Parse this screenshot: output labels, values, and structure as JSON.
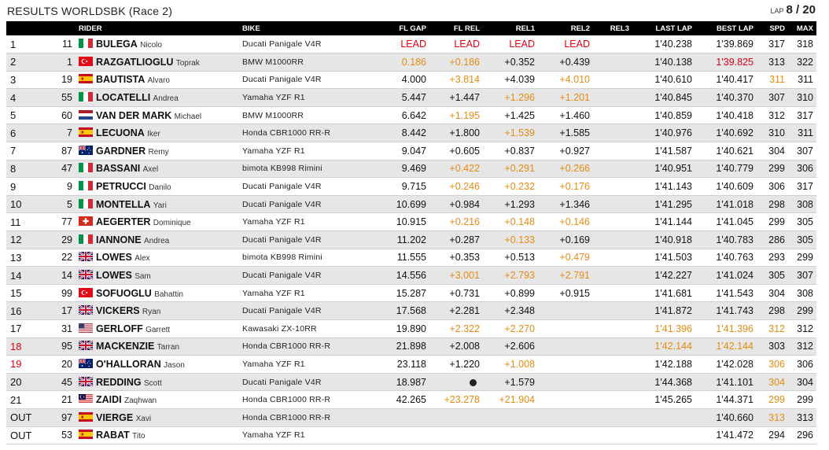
{
  "header": {
    "title": "RESULTS WORLDSBK (Race 2)",
    "lap_label": "LAP",
    "lap_value": "8 / 20"
  },
  "columns": [
    "",
    "",
    "RIDER",
    "BIKE",
    "FL GAP",
    "FL REL",
    "REL1",
    "REL2",
    "REL3",
    "LAST LAP",
    "BEST LAP",
    "SPD",
    "MAX"
  ],
  "colors": {
    "red": "#e3000f",
    "orange": "#e78b12",
    "header_bg": "#000000",
    "row_alt": "#e6e6e6"
  },
  "rows": [
    {
      "pos": "1",
      "num": "11",
      "flag": "italy",
      "last": "BULEGA",
      "first": "Nicolo",
      "bike": "Ducati Panigale V4R",
      "flgap": "LEAD",
      "flrel": "LEAD",
      "rel1": "LEAD",
      "rel2": "LEAD",
      "rel3": "",
      "lastlap": "1'40.238",
      "bestlap": "1'39.869",
      "spd": "317",
      "max": "318",
      "c": {
        "flgap": "r",
        "flrel": "r",
        "rel1": "r",
        "rel2": "r"
      }
    },
    {
      "pos": "2",
      "num": "1",
      "flag": "turkey",
      "last": "RAZGATLIOGLU",
      "first": "Toprak",
      "bike": "BMW M1000RR",
      "flgap": "0.186",
      "flrel": "+0.186",
      "rel1": "+0.352",
      "rel2": "+0.439",
      "rel3": "",
      "lastlap": "1'40.138",
      "bestlap": "1'39.825",
      "spd": "313",
      "max": "322",
      "c": {
        "flgap": "o",
        "flrel": "o",
        "bestlap": "r"
      }
    },
    {
      "pos": "3",
      "num": "19",
      "flag": "spain",
      "last": "BAUTISTA",
      "first": "Alvaro",
      "bike": "Ducati Panigale V4R",
      "flgap": "4.000",
      "flrel": "+3.814",
      "rel1": "+4.039",
      "rel2": "+4.010",
      "rel3": "",
      "lastlap": "1'40.610",
      "bestlap": "1'40.417",
      "spd": "311",
      "max": "311",
      "c": {
        "flrel": "o",
        "rel2": "o",
        "spd": "o"
      }
    },
    {
      "pos": "4",
      "num": "55",
      "flag": "italy",
      "last": "LOCATELLI",
      "first": "Andrea",
      "bike": "Yamaha YZF R1",
      "flgap": "5.447",
      "flrel": "+1.447",
      "rel1": "+1.296",
      "rel2": "+1.201",
      "rel3": "",
      "lastlap": "1'40.845",
      "bestlap": "1'40.370",
      "spd": "307",
      "max": "310",
      "c": {
        "rel1": "o",
        "rel2": "o"
      }
    },
    {
      "pos": "5",
      "num": "60",
      "flag": "netherlands",
      "last": "VAN DER MARK",
      "first": "Michael",
      "bike": "BMW M1000RR",
      "flgap": "6.642",
      "flrel": "+1.195",
      "rel1": "+1.425",
      "rel2": "+1.460",
      "rel3": "",
      "lastlap": "1'40.859",
      "bestlap": "1'40.418",
      "spd": "312",
      "max": "317",
      "c": {
        "flrel": "o"
      }
    },
    {
      "pos": "6",
      "num": "7",
      "flag": "spain",
      "last": "LECUONA",
      "first": "Iker",
      "bike": "Honda CBR1000 RR-R",
      "flgap": "8.442",
      "flrel": "+1.800",
      "rel1": "+1.539",
      "rel2": "+1.585",
      "rel3": "",
      "lastlap": "1'40.976",
      "bestlap": "1'40.692",
      "spd": "310",
      "max": "311",
      "c": {
        "rel1": "o"
      }
    },
    {
      "pos": "7",
      "num": "87",
      "flag": "australia",
      "last": "GARDNER",
      "first": "Remy",
      "bike": "Yamaha YZF R1",
      "flgap": "9.047",
      "flrel": "+0.605",
      "rel1": "+0.837",
      "rel2": "+0.927",
      "rel3": "",
      "lastlap": "1'41.587",
      "bestlap": "1'40.621",
      "spd": "304",
      "max": "307",
      "c": {}
    },
    {
      "pos": "8",
      "num": "47",
      "flag": "italy",
      "last": "BASSANI",
      "first": "Axel",
      "bike": "bimota KB998 Rimini",
      "flgap": "9.469",
      "flrel": "+0.422",
      "rel1": "+0.291",
      "rel2": "+0.266",
      "rel3": "",
      "lastlap": "1'40.951",
      "bestlap": "1'40.779",
      "spd": "299",
      "max": "306",
      "c": {
        "flrel": "o",
        "rel1": "o",
        "rel2": "o"
      }
    },
    {
      "pos": "9",
      "num": "9",
      "flag": "italy",
      "last": "PETRUCCI",
      "first": "Danilo",
      "bike": "Ducati Panigale V4R",
      "flgap": "9.715",
      "flrel": "+0.246",
      "rel1": "+0.232",
      "rel2": "+0.176",
      "rel3": "",
      "lastlap": "1'41.143",
      "bestlap": "1'40.609",
      "spd": "306",
      "max": "317",
      "c": {
        "flrel": "o",
        "rel1": "o",
        "rel2": "o"
      }
    },
    {
      "pos": "10",
      "num": "5",
      "flag": "italy",
      "last": "MONTELLA",
      "first": "Yari",
      "bike": "Ducati Panigale V4R",
      "flgap": "10.699",
      "flrel": "+0.984",
      "rel1": "+1.293",
      "rel2": "+1.346",
      "rel3": "",
      "lastlap": "1'41.295",
      "bestlap": "1'41.018",
      "spd": "298",
      "max": "308",
      "c": {}
    },
    {
      "pos": "11",
      "num": "77",
      "flag": "switzerland",
      "last": "AEGERTER",
      "first": "Dominique",
      "bike": "Yamaha YZF R1",
      "flgap": "10.915",
      "flrel": "+0.216",
      "rel1": "+0.148",
      "rel2": "+0.146",
      "rel3": "",
      "lastlap": "1'41.144",
      "bestlap": "1'41.045",
      "spd": "299",
      "max": "305",
      "c": {
        "flrel": "o",
        "rel1": "o",
        "rel2": "o"
      }
    },
    {
      "pos": "12",
      "num": "29",
      "flag": "italy",
      "last": "IANNONE",
      "first": "Andrea",
      "bike": "Ducati Panigale V4R",
      "flgap": "11.202",
      "flrel": "+0.287",
      "rel1": "+0.133",
      "rel2": "+0.169",
      "rel3": "",
      "lastlap": "1'40.918",
      "bestlap": "1'40.783",
      "spd": "286",
      "max": "305",
      "c": {
        "rel1": "o"
      }
    },
    {
      "pos": "13",
      "num": "22",
      "flag": "uk",
      "last": "LOWES",
      "first": "Alex",
      "bike": "bimota KB998 Rimini",
      "flgap": "11.555",
      "flrel": "+0.353",
      "rel1": "+0.513",
      "rel2": "+0.479",
      "rel3": "",
      "lastlap": "1'41.503",
      "bestlap": "1'40.763",
      "spd": "293",
      "max": "299",
      "c": {
        "rel2": "o"
      }
    },
    {
      "pos": "14",
      "num": "14",
      "flag": "uk",
      "last": "LOWES",
      "first": "Sam",
      "bike": "Ducati Panigale V4R",
      "flgap": "14.556",
      "flrel": "+3.001",
      "rel1": "+2.793",
      "rel2": "+2.791",
      "rel3": "",
      "lastlap": "1'42.227",
      "bestlap": "1'41.024",
      "spd": "305",
      "max": "307",
      "c": {
        "flrel": "o",
        "rel1": "o",
        "rel2": "o"
      }
    },
    {
      "pos": "15",
      "num": "99",
      "flag": "turkey",
      "last": "SOFUOGLU",
      "first": "Bahattin",
      "bike": "Yamaha YZF R1",
      "flgap": "15.287",
      "flrel": "+0.731",
      "rel1": "+0.899",
      "rel2": "+0.915",
      "rel3": "",
      "lastlap": "1'41.681",
      "bestlap": "1'41.543",
      "spd": "304",
      "max": "308",
      "c": {}
    },
    {
      "pos": "16",
      "num": "17",
      "flag": "uk",
      "last": "VICKERS",
      "first": "Ryan",
      "bike": "Ducati Panigale V4R",
      "flgap": "17.568",
      "flrel": "+2.281",
      "rel1": "+2.348",
      "rel2": "",
      "rel3": "",
      "lastlap": "1'41.872",
      "bestlap": "1'41.743",
      "spd": "298",
      "max": "299",
      "c": {}
    },
    {
      "pos": "17",
      "num": "31",
      "flag": "usa",
      "last": "GERLOFF",
      "first": "Garrett",
      "bike": "Kawasaki ZX-10RR",
      "flgap": "19.890",
      "flrel": "+2.322",
      "rel1": "+2.270",
      "rel2": "",
      "rel3": "",
      "lastlap": "1'41.396",
      "bestlap": "1'41.396",
      "spd": "312",
      "max": "312",
      "c": {
        "flrel": "o",
        "rel1": "o",
        "lastlap": "o",
        "bestlap": "o",
        "spd": "o"
      }
    },
    {
      "pos": "18",
      "num": "95",
      "flag": "uk",
      "last": "MACKENZIE",
      "first": "Tarran",
      "bike": "Honda CBR1000 RR-R",
      "flgap": "21.898",
      "flrel": "+2.008",
      "rel1": "+2.606",
      "rel2": "",
      "rel3": "",
      "lastlap": "1'42.144",
      "bestlap": "1'42.144",
      "spd": "303",
      "max": "312",
      "c": {
        "pos": "r",
        "lastlap": "o",
        "bestlap": "o"
      }
    },
    {
      "pos": "19",
      "num": "20",
      "flag": "australia",
      "last": "O'HALLORAN",
      "first": "Jason",
      "bike": "Yamaha YZF R1",
      "flgap": "23.118",
      "flrel": "+1.220",
      "rel1": "+1.008",
      "rel2": "",
      "rel3": "",
      "lastlap": "1'42.188",
      "bestlap": "1'42.028",
      "spd": "306",
      "max": "306",
      "c": {
        "pos": "r",
        "rel1": "o",
        "spd": "o"
      }
    },
    {
      "pos": "20",
      "num": "45",
      "flag": "uk",
      "last": "REDDING",
      "first": "Scott",
      "bike": "Ducati Panigale V4R",
      "flgap": "18.987",
      "flrel": "",
      "dot": true,
      "rel1": "+1.579",
      "rel2": "",
      "rel3": "",
      "lastlap": "1'44.368",
      "bestlap": "1'41.101",
      "spd": "304",
      "max": "304",
      "c": {
        "spd": "o"
      }
    },
    {
      "pos": "21",
      "num": "21",
      "flag": "malaysia",
      "last": "ZAIDI",
      "first": "Zaqhwan",
      "bike": "Honda CBR1000 RR-R",
      "flgap": "42.265",
      "flrel": "+23.278",
      "rel1": "+21.904",
      "rel2": "",
      "rel3": "",
      "lastlap": "1'45.265",
      "bestlap": "1'44.371",
      "spd": "299",
      "max": "299",
      "c": {
        "flrel": "o",
        "rel1": "o",
        "spd": "o"
      }
    },
    {
      "pos": "OUT",
      "num": "97",
      "flag": "spain",
      "last": "VIERGE",
      "first": "Xavi",
      "bike": "Honda CBR1000 RR-R",
      "flgap": "",
      "flrel": "",
      "rel1": "",
      "rel2": "",
      "rel3": "",
      "lastlap": "",
      "bestlap": "1'40.660",
      "spd": "313",
      "max": "313",
      "c": {
        "spd": "o"
      }
    },
    {
      "pos": "OUT",
      "num": "53",
      "flag": "spain",
      "last": "RABAT",
      "first": "Tito",
      "bike": "Yamaha YZF R1",
      "flgap": "",
      "flrel": "",
      "rel1": "",
      "rel2": "",
      "rel3": "",
      "lastlap": "",
      "bestlap": "1'41.472",
      "spd": "294",
      "max": "296",
      "c": {}
    }
  ]
}
